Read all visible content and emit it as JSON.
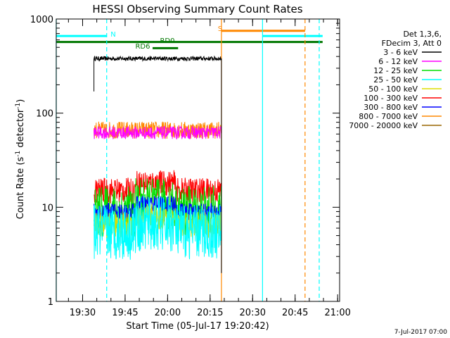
{
  "chart_data": {
    "type": "line",
    "title": "HESSI Observing Summary Count Rates",
    "xlabel": "Start Time (05-Jul-17 19:20:42)",
    "ylabel": "Count Rate (s⁻¹ detector⁻¹)",
    "ylabel_parts": [
      "Count Rate (s",
      "-1",
      " detector",
      "-1",
      ")"
    ],
    "yscale": "log",
    "ylim": [
      1,
      1000
    ],
    "yticks": [
      1,
      10,
      100,
      1000
    ],
    "ytick_labels": [
      "1",
      "10",
      "100",
      "1000"
    ],
    "x_units": "minutes after 19:20:42",
    "xlim": [
      0,
      100
    ],
    "xticks": [
      9.3,
      24.3,
      39.3,
      54.3,
      69.3,
      84.3,
      99.3
    ],
    "xtick_labels": [
      "19:30",
      "19:45",
      "20:00",
      "20:15",
      "20:30",
      "20:45",
      "21:00"
    ],
    "legend": {
      "placement": "right",
      "header": [
        "Det 1,3,6,",
        "FDecim 3, Att 0"
      ],
      "entries": [
        {
          "label": "3 - 6 keV",
          "color": "#000000"
        },
        {
          "label": "6 - 12 keV",
          "color": "#ff00ff"
        },
        {
          "label": "12 - 25 keV",
          "color": "#00dd00"
        },
        {
          "label": "25 - 50 keV",
          "color": "#00ffff"
        },
        {
          "label": "50 - 100 keV",
          "color": "#dddd00"
        },
        {
          "label": "100 - 300 keV",
          "color": "#ff0000"
        },
        {
          "label": "300 - 800 keV",
          "color": "#0000ff"
        },
        {
          "label": "800 - 7000 keV",
          "color": "#ff8800"
        },
        {
          "label": "7000 - 20000 keV",
          "color": "#996600"
        }
      ]
    },
    "series": [
      {
        "name": "3 - 6 keV",
        "color": "#000000",
        "x": [
          13.3,
          58.3
        ],
        "level": 380,
        "noise": 0.01
      },
      {
        "name": "800 - 7000 keV",
        "color": "#ff8800",
        "x": [
          13.3,
          58.3
        ],
        "level": 66,
        "noise": 0.04
      },
      {
        "name": "6 - 12 keV",
        "color": "#ff00ff",
        "x": [
          13.3,
          58.3
        ],
        "level": 62,
        "noise": 0.03
      },
      {
        "name": "100 - 300 keV",
        "color": "#ff0000",
        "x": [
          13.3,
          58.3
        ],
        "level": 15,
        "noise": 0.06
      },
      {
        "name": "12 - 25 keV",
        "color": "#00dd00",
        "x": [
          13.3,
          58.3
        ],
        "level": 9,
        "noise": 0.12
      },
      {
        "name": "300 - 800 keV",
        "color": "#0000ff",
        "x": [
          13.3,
          58.3
        ],
        "level": 9,
        "noise": 0.04
      },
      {
        "name": "50 - 100 keV",
        "color": "#dddd00",
        "x": [
          13.3,
          58.3
        ],
        "level": 6.5,
        "noise": 0.06
      },
      {
        "name": "25 - 50 keV",
        "color": "#00ffff",
        "x": [
          13.3,
          58.3
        ],
        "level": 5.5,
        "noise": 0.13
      }
    ],
    "flag_bars": [
      {
        "label": "N",
        "color": "#00ffff",
        "y": 660,
        "segments": [
          [
            0,
            17.8
          ],
          [
            72.8,
            94
          ]
        ]
      },
      {
        "label": "S",
        "color": "#ff8800",
        "y": 750,
        "segments": [
          [
            58.3,
            87.8
          ]
        ]
      },
      {
        "label": "RD0",
        "color": "#007700",
        "y": 570,
        "segments": [
          [
            0,
            94
          ]
        ]
      },
      {
        "label": "RD6",
        "color": "#007700",
        "y": 490,
        "segments": [
          [
            34,
            43
          ]
        ]
      }
    ],
    "vlines": [
      {
        "x": 0,
        "color": "#00ffff",
        "dash": false
      },
      {
        "x": 17.8,
        "color": "#00ffff",
        "dash": true
      },
      {
        "x": 58.3,
        "color": "#ff8800",
        "dash": false
      },
      {
        "x": 72.8,
        "color": "#00ffff",
        "dash": false
      },
      {
        "x": 87.8,
        "color": "#ff8800",
        "dash": true
      },
      {
        "x": 92.8,
        "color": "#00ffff",
        "dash": true
      }
    ],
    "footer_date": "7-Jul-2017 07:00"
  }
}
